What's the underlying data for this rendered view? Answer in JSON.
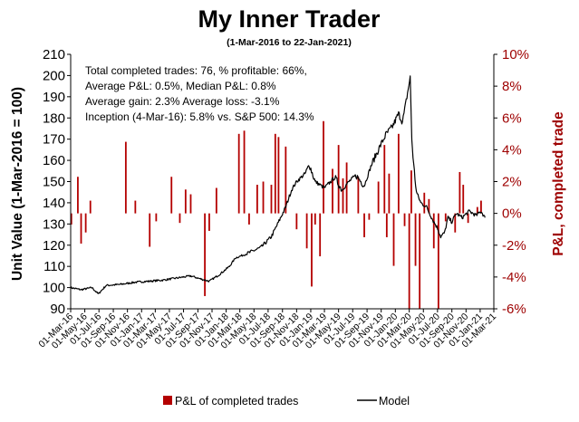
{
  "chart_data": {
    "type": "line+bar",
    "title": "My Inner Trader",
    "subtitle": "(1-Mar-2016 to 22-Jan-2021)",
    "ylabel_left": "Unit Value (1-Mar-2016 = 100)",
    "ylabel_right": "P&L, completed trade",
    "ylim_left": [
      90,
      210
    ],
    "ylim_right": [
      -6,
      10
    ],
    "yticks_left": [
      "90",
      "100",
      "110",
      "120",
      "130",
      "140",
      "150",
      "160",
      "170",
      "180",
      "190",
      "200",
      "210"
    ],
    "yticks_right": [
      "-6%",
      "-4%",
      "-2%",
      "0%",
      "2%",
      "4%",
      "6%",
      "8%",
      "10%"
    ],
    "x_start": "2016-03-01",
    "x_end": "2021-03-01",
    "xticks": [
      "01-Mar-16",
      "01-May-16",
      "01-Jul-16",
      "01-Sep-16",
      "01-Nov-16",
      "01-Jan-17",
      "01-Mar-17",
      "01-May-17",
      "01-Jul-17",
      "01-Sep-17",
      "01-Nov-17",
      "01-Jan-18",
      "01-Mar-18",
      "01-May-18",
      "01-Jul-18",
      "01-Sep-18",
      "01-Nov-18",
      "01-Jan-19",
      "01-Mar-19",
      "01-May-19",
      "01-Jul-19",
      "01-Sep-19",
      "01-Nov-19",
      "01-Jan-20",
      "01-Mar-20",
      "01-May-20",
      "01-Jul-20",
      "01-Sep-20",
      "01-Nov-20",
      "01-Jan-21",
      "01-Mar-21"
    ],
    "annotations": [
      "Total completed trades: 76, % profitable: 66%,",
      "Average P&L: 0.5%, Median P&L: 0.8%",
      "Average gain: 2.3% Average loss: -3.1%",
      "Inception (4-Mar-16): 5.8% vs. S&P 500: 14.3%"
    ],
    "legend_placement": "bottom",
    "series": [
      {
        "name": "Model",
        "type": "line",
        "axis": "left",
        "color": "#000000",
        "points": [
          [
            "2016-03-01",
            100
          ],
          [
            "2016-04-15",
            99
          ],
          [
            "2016-06-01",
            100
          ],
          [
            "2016-06-28",
            97
          ],
          [
            "2016-08-01",
            101
          ],
          [
            "2016-10-01",
            101.5
          ],
          [
            "2016-12-01",
            102.5
          ],
          [
            "2017-02-01",
            103
          ],
          [
            "2017-04-01",
            103.5
          ],
          [
            "2017-06-01",
            104.5
          ],
          [
            "2017-08-01",
            105.5
          ],
          [
            "2017-09-15",
            104
          ],
          [
            "2017-10-20",
            103
          ],
          [
            "2017-12-01",
            106
          ],
          [
            "2018-01-15",
            110
          ],
          [
            "2018-02-10",
            114
          ],
          [
            "2018-04-01",
            116
          ],
          [
            "2018-06-01",
            119
          ],
          [
            "2018-07-15",
            124
          ],
          [
            "2018-08-20",
            132
          ],
          [
            "2018-09-15",
            138
          ],
          [
            "2018-10-10",
            146
          ],
          [
            "2018-11-01",
            150
          ],
          [
            "2018-12-10",
            154
          ],
          [
            "2018-12-26",
            158
          ],
          [
            "2019-01-20",
            150
          ],
          [
            "2019-03-01",
            147
          ],
          [
            "2019-04-15",
            152
          ],
          [
            "2019-05-15",
            146
          ],
          [
            "2019-06-15",
            150
          ],
          [
            "2019-07-15",
            153
          ],
          [
            "2019-08-20",
            148
          ],
          [
            "2019-09-20",
            158
          ],
          [
            "2019-10-20",
            165
          ],
          [
            "2019-11-20",
            172
          ],
          [
            "2019-12-20",
            176
          ],
          [
            "2020-01-15",
            182
          ],
          [
            "2020-02-01",
            178
          ],
          [
            "2020-02-20",
            190
          ],
          [
            "2020-03-05",
            199
          ],
          [
            "2020-03-12",
            170
          ],
          [
            "2020-03-20",
            158
          ],
          [
            "2020-04-01",
            145
          ],
          [
            "2020-04-20",
            140
          ],
          [
            "2020-05-15",
            138
          ],
          [
            "2020-06-10",
            132
          ],
          [
            "2020-07-01",
            128
          ],
          [
            "2020-07-15",
            124
          ],
          [
            "2020-08-01",
            126
          ],
          [
            "2020-08-15",
            133
          ],
          [
            "2020-09-01",
            131
          ],
          [
            "2020-09-20",
            135
          ],
          [
            "2020-10-15",
            133
          ],
          [
            "2020-11-15",
            136
          ],
          [
            "2020-12-15",
            134
          ],
          [
            "2021-01-05",
            136
          ],
          [
            "2021-01-22",
            133
          ]
        ]
      },
      {
        "name": "P&L of completed trades",
        "type": "bar",
        "axis": "right",
        "color": "#b40000",
        "points": [
          [
            "2016-03-04",
            -0.7
          ],
          [
            "2016-04-01",
            2.3
          ],
          [
            "2016-04-15",
            -1.9
          ],
          [
            "2016-05-05",
            -1.2
          ],
          [
            "2016-05-25",
            0.8
          ],
          [
            "2016-10-25",
            4.5
          ],
          [
            "2016-12-05",
            0.8
          ],
          [
            "2017-02-05",
            -2.1
          ],
          [
            "2017-03-05",
            -0.5
          ],
          [
            "2017-05-10",
            2.3
          ],
          [
            "2017-06-15",
            -0.6
          ],
          [
            "2017-07-10",
            1.5
          ],
          [
            "2017-08-01",
            1.2
          ],
          [
            "2017-10-01",
            -5.2
          ],
          [
            "2017-10-20",
            -1.1
          ],
          [
            "2017-11-20",
            1.6
          ],
          [
            "2018-02-25",
            5.0
          ],
          [
            "2018-03-20",
            5.2
          ],
          [
            "2018-04-10",
            -0.7
          ],
          [
            "2018-05-15",
            1.8
          ],
          [
            "2018-06-10",
            2.0
          ],
          [
            "2018-07-15",
            1.8
          ],
          [
            "2018-08-01",
            5.0
          ],
          [
            "2018-08-15",
            4.8
          ],
          [
            "2018-09-15",
            4.2
          ],
          [
            "2018-11-01",
            -1.0
          ],
          [
            "2018-12-15",
            -2.2
          ],
          [
            "2019-01-05",
            -4.6
          ],
          [
            "2019-01-20",
            -0.7
          ],
          [
            "2019-02-10",
            -2.7
          ],
          [
            "2019-02-25",
            5.8
          ],
          [
            "2019-04-05",
            2.8
          ],
          [
            "2019-05-01",
            4.3
          ],
          [
            "2019-05-20",
            2.2
          ],
          [
            "2019-06-05",
            3.2
          ],
          [
            "2019-07-25",
            2.3
          ],
          [
            "2019-08-20",
            -1.5
          ],
          [
            "2019-09-10",
            -0.4
          ],
          [
            "2019-10-20",
            2.0
          ],
          [
            "2019-11-15",
            4.3
          ],
          [
            "2019-11-25",
            -1.5
          ],
          [
            "2019-12-05",
            2.5
          ],
          [
            "2019-12-25",
            -3.3
          ],
          [
            "2020-01-15",
            5.0
          ],
          [
            "2020-02-10",
            -0.8
          ],
          [
            "2020-03-01",
            -6.0
          ],
          [
            "2020-03-10",
            2.7
          ],
          [
            "2020-03-28",
            -3.3
          ],
          [
            "2020-04-15",
            -6.0
          ],
          [
            "2020-05-05",
            1.3
          ],
          [
            "2020-05-25",
            0.9
          ],
          [
            "2020-06-15",
            -2.2
          ],
          [
            "2020-07-05",
            -6.0
          ],
          [
            "2020-08-05",
            -0.5
          ],
          [
            "2020-09-15",
            -1.2
          ],
          [
            "2020-10-05",
            2.6
          ],
          [
            "2020-10-20",
            1.8
          ],
          [
            "2020-11-10",
            -0.6
          ],
          [
            "2020-12-20",
            0.4
          ],
          [
            "2021-01-05",
            0.8
          ]
        ]
      }
    ]
  }
}
